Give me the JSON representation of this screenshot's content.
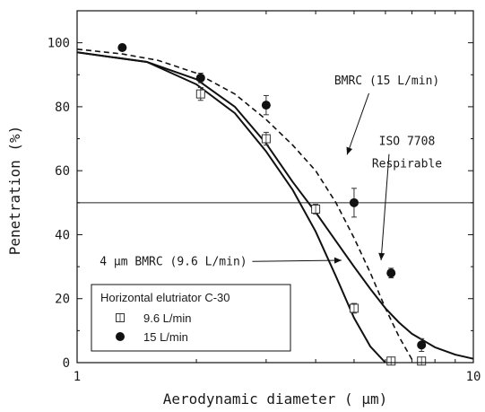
{
  "chart_data": {
    "type": "scatter",
    "xlabel": "Aerodynamic diameter ( μm)",
    "ylabel": "Penetration (%)",
    "x_scale": "log",
    "xlim": [
      1,
      10
    ],
    "ylim": [
      0,
      110
    ],
    "x_ticks": [
      1,
      10
    ],
    "y_ticks": [
      0,
      20,
      40,
      60,
      80,
      100
    ],
    "x_tick_labels": [
      "1",
      "10"
    ],
    "y_tick_labels": [
      "0",
      "20",
      "40",
      "60",
      "80",
      "100"
    ],
    "reference_line_y": 50,
    "curves": [
      {
        "label": "BMRC (15 L/min)",
        "style": "dashed",
        "x": [
          1.0,
          1.3,
          1.6,
          2.0,
          2.5,
          3.0,
          3.5,
          4.0,
          4.5,
          5.0,
          5.5,
          6.0,
          6.5,
          7.0
        ],
        "y": [
          98,
          96.5,
          94.5,
          90.5,
          84,
          76,
          68,
          60,
          50,
          39,
          28,
          17,
          8,
          1
        ]
      },
      {
        "label": "ISO 7708 Respirable",
        "style": "solid",
        "x": [
          1.0,
          1.5,
          2.0,
          2.5,
          3.0,
          3.5,
          4.0,
          4.5,
          5.0,
          5.5,
          6.0,
          6.5,
          7.0,
          8.0,
          9.0,
          10.0
        ],
        "y": [
          97,
          94,
          88.6,
          80,
          68.5,
          56.5,
          47,
          38,
          30,
          23,
          17,
          12.5,
          9,
          4.8,
          2.5,
          1.2
        ]
      },
      {
        "label": "4 μm BMRC (9.6 L/min)",
        "style": "solid",
        "x": [
          1.0,
          1.5,
          2.0,
          2.5,
          3.0,
          3.5,
          4.0,
          4.5,
          5.0,
          5.5,
          6.0
        ],
        "y": [
          97,
          94,
          87,
          78,
          66,
          54,
          41,
          27,
          14,
          5,
          0
        ]
      }
    ],
    "series": [
      {
        "name": "9.6 L/min",
        "marker": "open-square",
        "x": [
          2.05,
          3.0,
          4.0,
          5.0,
          6.2,
          7.4
        ],
        "y": [
          84,
          70,
          48,
          17,
          0.5,
          0.5
        ],
        "err": [
          2,
          2,
          1.5,
          1.5,
          0.5,
          0.5
        ]
      },
      {
        "name": "15 L/min",
        "marker": "filled-circle",
        "x": [
          1.3,
          2.05,
          3.0,
          5.0,
          6.2,
          7.4
        ],
        "y": [
          98.5,
          89,
          80.5,
          50,
          28,
          5.5
        ],
        "err": [
          0.5,
          1.5,
          3,
          4.5,
          1.5,
          2
        ]
      }
    ],
    "annotations": [
      {
        "text": "BMRC (15 L/min)",
        "x": 6.05,
        "y": 87,
        "arrow_to": [
          4.8,
          65
        ]
      },
      {
        "text": "ISO 7708",
        "x": 6.8,
        "y": 68,
        "arrow_to": [
          5.85,
          32
        ]
      },
      {
        "text": "Respirable",
        "x": 6.8,
        "y": 61
      },
      {
        "text": "4 μm BMRC (9.6 L/min)",
        "x": 1.75,
        "y": 30.5,
        "arrow_to": [
          4.65,
          32
        ]
      }
    ],
    "legend": {
      "title": "Horizontal elutriator C-30",
      "position": "bottom-left",
      "entries": [
        "9.6 L/min",
        "15 L/min"
      ]
    },
    "grid": false
  }
}
